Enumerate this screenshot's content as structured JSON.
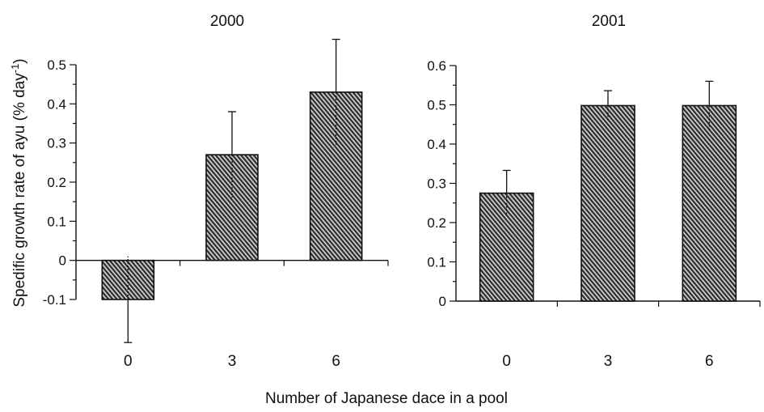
{
  "figure": {
    "ylabel_main": "Spedific growth rate of ayu (% day",
    "ylabel_sup": "-1",
    "ylabel_close": ")",
    "xlabel": "Number of Japanese dace in a pool"
  },
  "chart_data": [
    {
      "type": "bar",
      "title": "2000",
      "categories": [
        "0",
        "3",
        "6"
      ],
      "values": [
        -0.1,
        0.27,
        0.43
      ],
      "error_upper": [
        0.11,
        0.11,
        0.135
      ],
      "ylim": [
        -0.1,
        0.5
      ],
      "yticks": [
        -0.1,
        0,
        0.1,
        0.2,
        0.3,
        0.4,
        0.5
      ],
      "ytick_labels": [
        "-0.1",
        "0",
        "0.1",
        "0.2",
        "0.3",
        "0.4",
        "0.5"
      ],
      "xlabel": "Number of Japanese dace in a pool",
      "ylabel": "Spedific growth rate of ayu (% day-1)",
      "grid": false,
      "hatch": true
    },
    {
      "type": "bar",
      "title": "2001",
      "categories": [
        "0",
        "3",
        "6"
      ],
      "values": [
        0.275,
        0.498,
        0.498
      ],
      "error_upper": [
        0.058,
        0.038,
        0.062
      ],
      "ylim": [
        0,
        0.6
      ],
      "yticks": [
        0,
        0.1,
        0.2,
        0.3,
        0.4,
        0.5,
        0.6
      ],
      "ytick_labels": [
        "0",
        "0.1",
        "0.2",
        "0.3",
        "0.4",
        "0.5",
        "0.6"
      ],
      "xlabel": "Number of Japanese dace in a pool",
      "grid": false,
      "hatch": true
    }
  ]
}
